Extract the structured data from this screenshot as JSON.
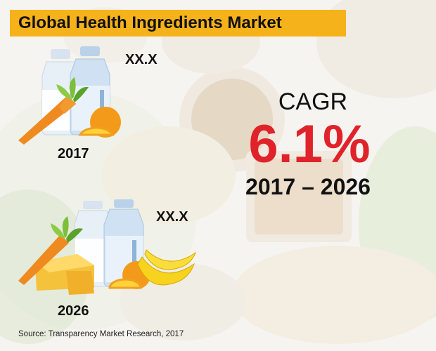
{
  "title": "Global Health Ingredients Market",
  "markers": [
    {
      "year": "2017",
      "value": "XX.X"
    },
    {
      "year": "2026",
      "value": "XX.X"
    }
  ],
  "cagr": {
    "label": "CAGR",
    "value": "6.1%",
    "range": "2017 – 2026"
  },
  "source": "Source: Transparency Market Research, 2017",
  "colors": {
    "title_bar": "#f6b21a",
    "cagr_value": "#e0232a"
  },
  "icons": [
    "milk-bottle-icon",
    "carrot-icon",
    "orange-icon",
    "cheese-icon",
    "banana-icon"
  ]
}
